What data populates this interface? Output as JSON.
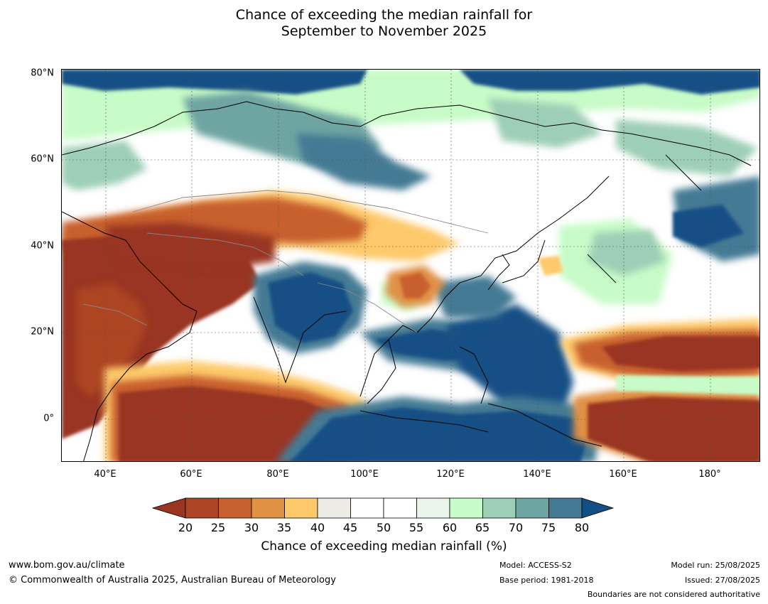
{
  "title_line1": "Chance of exceeding the median rainfall for",
  "title_line2": "September to November 2025",
  "lat_labels": [
    "80°N",
    "60°N",
    "40°N",
    "20°N",
    "0°"
  ],
  "lon_labels": [
    "40°E",
    "60°E",
    "80°E",
    "100°E",
    "120°E",
    "140°E",
    "160°E",
    "180°"
  ],
  "colorbar": {
    "ticks": [
      "20",
      "25",
      "30",
      "35",
      "40",
      "45",
      "50",
      "55",
      "60",
      "65",
      "70",
      "75",
      "80"
    ],
    "colors": [
      "#993520",
      "#ad4524",
      "#c8612f",
      "#e09144",
      "#fdc96a",
      "#ecebe6",
      "#ffffff",
      "#ffffff",
      "#e9f5e9",
      "#c7fbc7",
      "#9dcfb6",
      "#6ea4a2",
      "#457a94",
      "#134f85"
    ],
    "label": "Chance of exceeding median rainfall (%)"
  },
  "footer": {
    "url": "www.bom.gov.au/climate",
    "copyright": "© Commonwealth of Australia 2025, Australian Bureau of Meteorology",
    "model": "Model: ACCESS-S2",
    "base_period": "Base period: 1981-2018",
    "model_run": "Model run: 25/08/2025",
    "issued": "Issued: 27/08/2025",
    "disclaimer": "Boundaries are not considered authoritative"
  }
}
